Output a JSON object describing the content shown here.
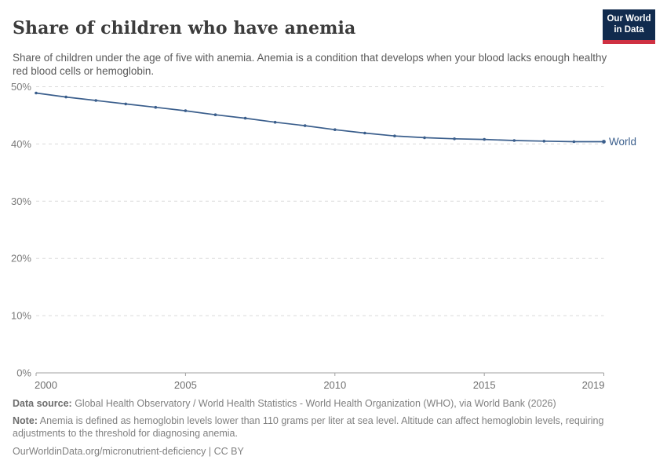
{
  "logo": {
    "line1": "Our World",
    "line2": "in Data",
    "bg_color": "#112B4E",
    "bar_color": "#CF3142",
    "text_color": "#FFFFFF"
  },
  "chart_data": {
    "type": "line",
    "title": "Share of children who have anemia",
    "subtitle": "Share of children under the age of five with anemia. Anemia is a condition that develops when your blood lacks enough healthy red blood cells or hemoglobin.",
    "x": [
      2000,
      2001,
      2002,
      2003,
      2004,
      2005,
      2006,
      2007,
      2008,
      2009,
      2010,
      2011,
      2012,
      2013,
      2014,
      2015,
      2016,
      2017,
      2018,
      2019
    ],
    "series": [
      {
        "name": "World",
        "color": "#3A5E8C",
        "values": [
          48.9,
          48.2,
          47.6,
          47.0,
          46.4,
          45.8,
          45.1,
          44.5,
          43.8,
          43.2,
          42.5,
          41.9,
          41.4,
          41.1,
          40.9,
          40.8,
          40.6,
          40.5,
          40.4,
          40.4
        ]
      }
    ],
    "xticks": [
      2000,
      2005,
      2010,
      2015,
      2019
    ],
    "yticks": [
      0,
      10,
      20,
      30,
      40,
      50
    ],
    "ylim": [
      0,
      50
    ],
    "xlabel": "",
    "ylabel": "",
    "y_tick_suffix": "%",
    "grid": "horizontal-dashed",
    "legend_position": "end-of-line-label",
    "axis_color": "#a0a0a0",
    "grid_color": "#dadada"
  },
  "footer": {
    "data_source_label": "Data source:",
    "data_source_text": " Global Health Observatory / World Health Statistics - World Health Organization (WHO), via World Bank (2026)",
    "note_label": "Note:",
    "note_text": " Anemia is defined as hemoglobin levels lower than 110 grams per liter at sea level. Altitude can affect hemoglobin levels, requiring adjustments to the threshold for diagnosing anemia.",
    "credit": "OurWorldinData.org/micronutrient-deficiency | CC BY"
  }
}
